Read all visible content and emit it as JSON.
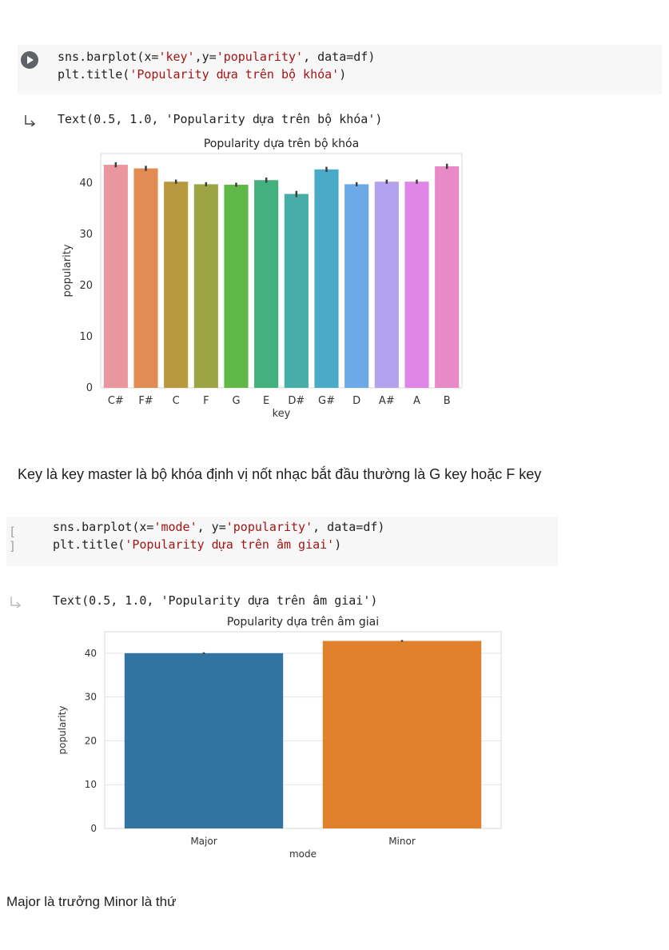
{
  "cell1": {
    "code": {
      "l1_a": "sns.barplot(x=",
      "l1_s1": "'key'",
      "l1_b": ",y=",
      "l1_s2": "'popularity'",
      "l1_c": ", data=df)",
      "l2_a": "plt.title(",
      "l2_s1": "'Popularity dựa trên bộ khóa'",
      "l2_b": ")"
    },
    "output_text": "Text(0.5, 1.0, 'Popularity dựa trên bộ khóa')",
    "run_state": "run-icon"
  },
  "markdown1": "Key là key master là bộ khóa định vị nốt nhạc bắt đầu thường là G key hoặc F key",
  "cell2": {
    "code": {
      "l1_a": "sns.barplot(x=",
      "l1_s1": "'mode'",
      "l1_b": ", y=",
      "l1_s2": "'popularity'",
      "l1_c": ", data=df)",
      "l2_a": "plt.title(",
      "l2_s1": "'Popularity dựa trên âm giai'",
      "l2_b": ")"
    },
    "idle_label": "[ ]",
    "output_text": "Text(0.5, 1.0, 'Popularity dựa trên âm giai')"
  },
  "markdown2": "Major là trưởng Minor là thứ",
  "chart_data": [
    {
      "type": "bar",
      "title": "Popularity dựa trên bộ khóa",
      "xlabel": "key",
      "ylabel": "popularity",
      "categories": [
        "C#",
        "F#",
        "C",
        "F",
        "G",
        "E",
        "D#",
        "G#",
        "D",
        "A#",
        "A",
        "B"
      ],
      "values": [
        43.6,
        42.9,
        40.3,
        39.8,
        39.7,
        40.6,
        37.9,
        42.7,
        39.8,
        40.3,
        40.3,
        43.3
      ],
      "error": [
        0.5,
        0.5,
        0.4,
        0.4,
        0.4,
        0.5,
        0.6,
        0.5,
        0.4,
        0.4,
        0.4,
        0.5
      ],
      "colors": [
        "#e9969e",
        "#e08c52",
        "#b8993f",
        "#9ca443",
        "#5fb847",
        "#44b07d",
        "#48aca7",
        "#4aabc9",
        "#6ba9e7",
        "#b3a2ee",
        "#df86e6",
        "#e78ac6"
      ],
      "yticks": [
        0,
        10,
        20,
        30,
        40
      ],
      "ylim": [
        0,
        45.8
      ],
      "grid": false
    },
    {
      "type": "bar",
      "title": "Popularity dựa trên âm giai",
      "xlabel": "mode",
      "ylabel": "popularity",
      "categories": [
        "Major",
        "Minor"
      ],
      "values": [
        40.0,
        42.8
      ],
      "error": [
        0.2,
        0.2
      ],
      "colors": [
        "#3274a1",
        "#e1812c"
      ],
      "yticks": [
        0,
        10,
        20,
        30,
        40
      ],
      "ylim": [
        0,
        44.9
      ],
      "grid": true
    }
  ]
}
